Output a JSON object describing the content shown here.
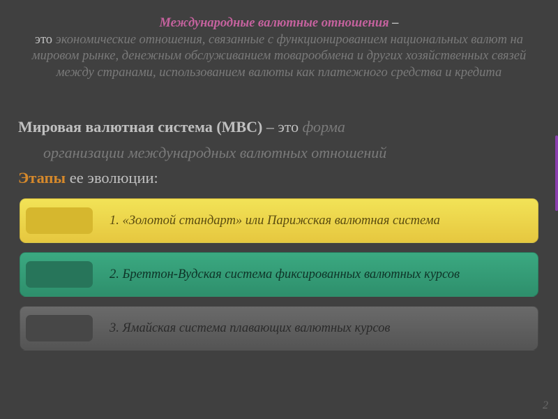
{
  "intro": {
    "title": "Международные валютные отношения",
    "dash": " – ",
    "lead": "это ",
    "body": "экономические отношения, связанные с функционированием национальных валют на мировом рынке, денежным обслуживанием товарообмена и других хозяйственных связей между странами, использованием валюты как платежного средства и кредита"
  },
  "mvs": {
    "strong": "Мировая валютная система (МВС)",
    "dash": " – это",
    "def": " форма",
    "def2": "организации международных валютных отношений"
  },
  "stages": {
    "heading": "Этапы",
    "rest": " ее эволюции:"
  },
  "bars": [
    {
      "label": "1. «Золотой стандарт» или Парижская валютная система",
      "bg_gradient": [
        "#f2e357",
        "#e6c73f"
      ],
      "tab_color": "#d6b72e",
      "text_color": "#5a4b0f"
    },
    {
      "label": "2. Бреттон-Вудская система фиксированных валютных курсов",
      "bg_gradient": [
        "#3ba981",
        "#2e8f6c"
      ],
      "tab_color": "#27755a",
      "text_color": "#0e3327"
    },
    {
      "label": "3. Ямайская система плавающих валютных курсов",
      "bg_gradient": [
        "#6a6a6a",
        "#545454"
      ],
      "tab_color": "#474747",
      "text_color": "#2a2a2a"
    }
  ],
  "page_number": "2",
  "colors": {
    "background": "#404040",
    "accent_pink": "#c5629e",
    "text_light": "#c0c0c0",
    "text_muted": "#7a7a7a",
    "accent_orange": "#d6892b",
    "side_purple": "#8a3fae"
  },
  "typography": {
    "intro_fontsize": 18.5,
    "body_fontsize": 22,
    "bar_label_fontsize": 18.5,
    "font_family": "Georgia"
  }
}
